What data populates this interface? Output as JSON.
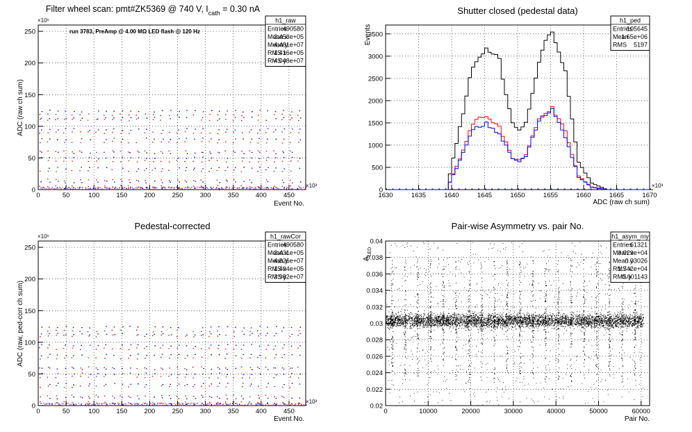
{
  "panels": [
    {
      "title_main": "Filter wheel scan: pmt#ZK5369 @   740 V, I",
      "title_sub": "cath",
      "title_tail": " = 0.30 nA",
      "annotation": "run 3783, PreAmp @ 4.00 MΩ LED flash @  120 Hz",
      "stats": {
        "name": "h1_raw",
        "rows": [
          [
            "Entries",
            "490580"
          ],
          [
            "Mean x",
            "2.453e+05"
          ],
          [
            "Mean y",
            "4.481e+07"
          ],
          [
            "RMS x",
            "1.416e+05"
          ],
          [
            "RMS y",
            "4.048e+07"
          ]
        ]
      },
      "ylabel": "ADC (raw ch sum)",
      "xlabel": "Event No.",
      "xexp": "×10³",
      "yexp": "×10⁶"
    },
    {
      "title": "Shutter closed (pedestal data)",
      "stats": {
        "name": "h1_ped",
        "rows": [
          [
            "Entries",
            "105645"
          ],
          [
            "Mean",
            "1.65e+06"
          ],
          [
            "RMS",
            "5197"
          ]
        ]
      },
      "ylabel": "Events",
      "xlabel": "ADC (raw ch sum)",
      "xexp": "×10³"
    },
    {
      "title": "Pedestal-corrected",
      "stats": {
        "name": "h1_rawCor",
        "rows": [
          [
            "Entries",
            "490580"
          ],
          [
            "Mean x",
            "2.431e+05"
          ],
          [
            "Mean y",
            "4.826e+07"
          ],
          [
            "RMS x",
            "1.404e+05"
          ],
          [
            "RMS y",
            "3.982e+07"
          ]
        ]
      },
      "ylabel": "ADC (raw, ped-corr ch sum)",
      "xlabel": "Event No.",
      "xexp": "×10³",
      "yexp": "×10⁶"
    },
    {
      "title": "Pair-wise Asymmetry vs. pair No.",
      "stats": {
        "name": "h1_asym_my",
        "rows": [
          [
            "Entries",
            "61321"
          ],
          [
            "Mean x",
            "3.029e+04"
          ],
          [
            "Mean y",
            "0.03026"
          ],
          [
            "RMS x",
            "1.742e+04"
          ],
          [
            "RMS y",
            "0.001143"
          ]
        ]
      },
      "ylabel_main": "A",
      "ylabel_sub": "LED",
      "xlabel": "Pair No."
    }
  ],
  "chart_data": [
    {
      "type": "scatter",
      "title": "Filter wheel scan: pmt#ZK5369 @   740 V, I_cath = 0.30 nA",
      "xlabel": "Event No.",
      "ylabel": "ADC (raw ch sum)",
      "x_scale_label": "×10^3",
      "y_scale_label": "×10^6",
      "xlim": [
        0,
        480
      ],
      "ylim": [
        0,
        260
      ],
      "xticks": [
        0,
        50,
        100,
        150,
        200,
        250,
        300,
        350,
        400,
        450
      ],
      "yticks": [
        0,
        50,
        100,
        150,
        200,
        250
      ],
      "grid": true,
      "series": [
        {
          "color": "#ff0000",
          "levels": [
            5,
            15,
            30,
            45,
            60,
            75,
            90,
            110,
            118
          ]
        },
        {
          "color": "#0000ff",
          "levels": [
            3,
            12,
            34,
            50,
            58,
            80,
            95,
            113,
            124
          ]
        }
      ],
      "block_period": 14.5
    },
    {
      "type": "line",
      "title": "Shutter closed (pedestal data)",
      "xlabel": "ADC (raw ch sum)",
      "ylabel": "Events",
      "x_scale_label": "×10^3",
      "xlim": [
        1630,
        1670
      ],
      "ylim": [
        0,
        3700
      ],
      "xticks": [
        1630,
        1635,
        1640,
        1645,
        1650,
        1655,
        1660,
        1665,
        1670
      ],
      "yticks": [
        0,
        500,
        1000,
        1500,
        2000,
        2500,
        3000,
        3500
      ],
      "grid": true,
      "x": [
        1639,
        1641,
        1643,
        1645,
        1647,
        1649,
        1650,
        1651,
        1653,
        1655,
        1657,
        1659,
        1661,
        1663
      ],
      "series": [
        {
          "color": "#000000",
          "values": [
            0,
            1400,
            2800,
            3100,
            2900,
            1500,
            1300,
            1500,
            2900,
            3650,
            2600,
            600,
            150,
            20
          ]
        },
        {
          "color": "#ff0000",
          "values": [
            0,
            700,
            1500,
            1680,
            1400,
            700,
            650,
            800,
            1550,
            1850,
            1300,
            300,
            60,
            10
          ]
        },
        {
          "color": "#0000ff",
          "values": [
            0,
            650,
            1350,
            1480,
            1250,
            700,
            620,
            750,
            1550,
            1820,
            1200,
            280,
            50,
            8
          ]
        }
      ]
    },
    {
      "type": "scatter",
      "title": "Pedestal-corrected",
      "xlabel": "Event No.",
      "ylabel": "ADC (raw, ped-corr ch sum)",
      "x_scale_label": "×10^3",
      "y_scale_label": "×10^6",
      "xlim": [
        0,
        480
      ],
      "ylim": [
        0,
        260
      ],
      "xticks": [
        0,
        50,
        100,
        150,
        200,
        250,
        300,
        350,
        400,
        450
      ],
      "yticks": [
        0,
        50,
        100,
        150,
        200,
        250
      ],
      "grid": true,
      "series": [
        {
          "color": "#ff0000",
          "levels": [
            5,
            15,
            30,
            45,
            60,
            75,
            90,
            110,
            118
          ]
        },
        {
          "color": "#0000ff",
          "levels": [
            3,
            12,
            34,
            50,
            58,
            80,
            95,
            113,
            124
          ]
        }
      ],
      "block_period": 14.5
    },
    {
      "type": "scatter",
      "title": "Pair-wise Asymmetry vs. pair No.",
      "xlabel": "Pair No.",
      "ylabel": "A_LED",
      "xlim": [
        0,
        62000
      ],
      "ylim": [
        0.02,
        0.04
      ],
      "xticks": [
        0,
        10000,
        20000,
        30000,
        40000,
        50000,
        60000
      ],
      "yticks": [
        0.02,
        0.022,
        0.024,
        0.026,
        0.028,
        0.03,
        0.032,
        0.034,
        0.036,
        0.038,
        0.04
      ],
      "grid": true,
      "series": [
        {
          "color": "#000000",
          "center": 0.0303,
          "band_halfwidth": 0.0006,
          "spike_period": 3000
        }
      ]
    }
  ]
}
